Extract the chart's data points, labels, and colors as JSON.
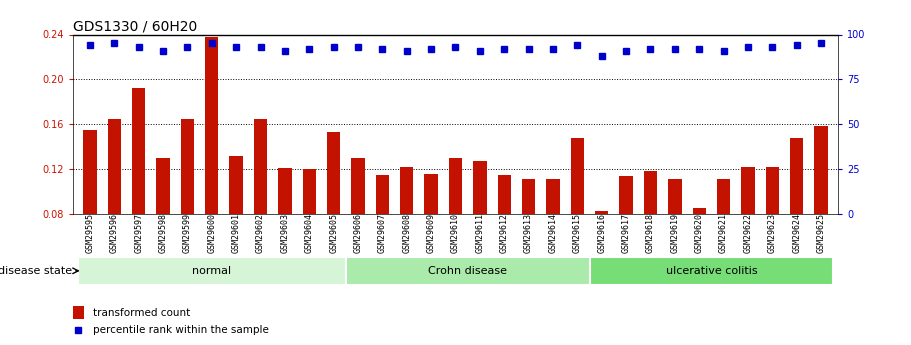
{
  "title": "GDS1330 / 60H20",
  "samples": [
    "GSM29595",
    "GSM29596",
    "GSM29597",
    "GSM29598",
    "GSM29599",
    "GSM29600",
    "GSM29601",
    "GSM29602",
    "GSM29603",
    "GSM29604",
    "GSM29605",
    "GSM29606",
    "GSM29607",
    "GSM29608",
    "GSM29609",
    "GSM29610",
    "GSM29611",
    "GSM29612",
    "GSM29613",
    "GSM29614",
    "GSM29615",
    "GSM29616",
    "GSM29617",
    "GSM29618",
    "GSM29619",
    "GSM29620",
    "GSM29621",
    "GSM29622",
    "GSM29623",
    "GSM29624",
    "GSM29625"
  ],
  "bar_values": [
    0.155,
    0.165,
    0.192,
    0.13,
    0.165,
    0.238,
    0.132,
    0.165,
    0.121,
    0.12,
    0.153,
    0.13,
    0.115,
    0.122,
    0.116,
    0.13,
    0.127,
    0.115,
    0.111,
    0.111,
    0.148,
    0.083,
    0.114,
    0.118,
    0.111,
    0.085,
    0.111,
    0.122,
    0.122,
    0.148,
    0.158
  ],
  "percentile_values": [
    94,
    95,
    93,
    91,
    93,
    95,
    93,
    93,
    91,
    92,
    93,
    93,
    92,
    91,
    92,
    93,
    91,
    92,
    92,
    92,
    94,
    88,
    91,
    92,
    92,
    92,
    91,
    93,
    93,
    94,
    95
  ],
  "bar_color": "#c41200",
  "dot_color": "#0000cc",
  "ylim_left": [
    0.08,
    0.24
  ],
  "ylim_right": [
    0,
    100
  ],
  "yticks_left": [
    0.08,
    0.12,
    0.16,
    0.2,
    0.24
  ],
  "yticks_right": [
    0,
    25,
    50,
    75,
    100
  ],
  "group_starts": [
    0,
    11,
    21
  ],
  "group_ends": [
    11,
    21,
    31
  ],
  "group_labels": [
    "normal",
    "Crohn disease",
    "ulcerative colitis"
  ],
  "group_colors": [
    "#d6f5d6",
    "#aaeaaa",
    "#77dd77"
  ],
  "legend_bar_label": "transformed count",
  "legend_dot_label": "percentile rank within the sample",
  "disease_state_label": "disease state",
  "background_color": "#ffffff",
  "title_fontsize": 10,
  "bar_tick_fontsize": 6,
  "ytick_fontsize": 7,
  "axis_label_color_left": "#cc1100",
  "axis_label_color_right": "#0000cc",
  "xtick_bg_color": "#d0d0d0"
}
